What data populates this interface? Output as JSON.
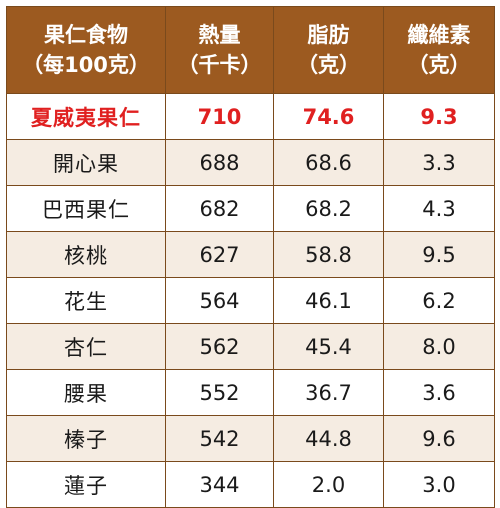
{
  "header": {
    "col1": {
      "line1": "果仁食物",
      "line2": "（每100克）"
    },
    "col2": {
      "line1": "熱量",
      "line2": "（千卡）"
    },
    "col3": {
      "line1": "脂肪",
      "line2": "（克）"
    },
    "col4": {
      "line1": "纖維素",
      "line2": "（克）"
    }
  },
  "rows": [
    {
      "name": "夏威夷果仁",
      "calories": "710",
      "fat": "74.6",
      "fiber": "9.3"
    },
    {
      "name": "開心果",
      "calories": "688",
      "fat": "68.6",
      "fiber": "3.3"
    },
    {
      "name": "巴西果仁",
      "calories": "682",
      "fat": "68.2",
      "fiber": "4.3"
    },
    {
      "name": "核桃",
      "calories": "627",
      "fat": "58.8",
      "fiber": "9.5"
    },
    {
      "name": "花生",
      "calories": "564",
      "fat": "46.1",
      "fiber": "6.2"
    },
    {
      "name": "杏仁",
      "calories": "562",
      "fat": "45.4",
      "fiber": "8.0"
    },
    {
      "name": "腰果",
      "calories": "552",
      "fat": "36.7",
      "fiber": "3.6"
    },
    {
      "name": "榛子",
      "calories": "542",
      "fat": "44.8",
      "fiber": "9.6"
    },
    {
      "name": "蓮子",
      "calories": "344",
      "fat": "2.0",
      "fiber": "3.0"
    }
  ],
  "colors": {
    "header_bg": "#9c5a20",
    "header_text": "#ffffff",
    "highlight_text": "#e02020",
    "stripe_bg": "#f5ece2",
    "border": "#7a4a1c"
  }
}
